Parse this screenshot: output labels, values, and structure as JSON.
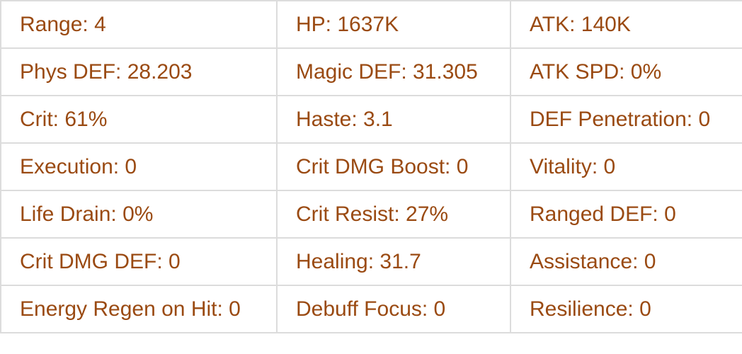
{
  "text_color": "#9a4a12",
  "rows": [
    [
      "Range: 4",
      "HP: 1637K",
      "ATK: 140K"
    ],
    [
      "Phys DEF: 28.203",
      "Magic DEF: 31.305",
      "ATK SPD: 0%"
    ],
    [
      "Crit: 61%",
      "Haste: 3.1",
      "DEF Penetration: 0"
    ],
    [
      "Execution: 0",
      "Crit DMG Boost: 0",
      "Vitality: 0"
    ],
    [
      "Life Drain: 0%",
      "Crit Resist: 27%",
      "Ranged DEF: 0"
    ],
    [
      "Crit DMG DEF: 0",
      "Healing: 31.7",
      "Assistance: 0"
    ],
    [
      "Energy Regen on Hit: 0",
      "Debuff Focus: 0",
      "Resilience: 0"
    ]
  ]
}
